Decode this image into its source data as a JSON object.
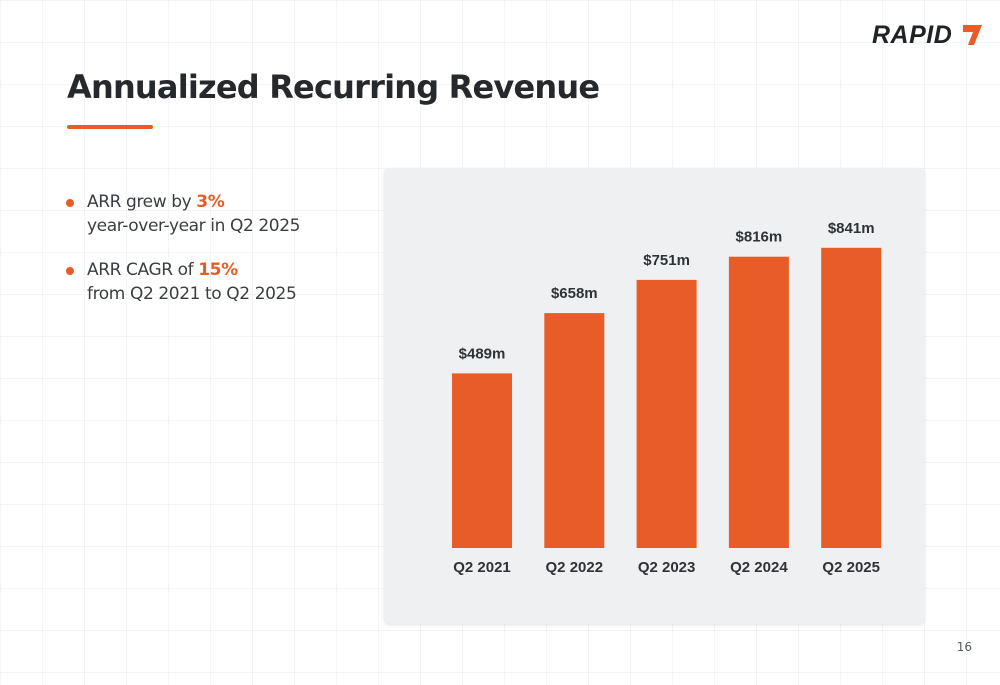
{
  "logo": {
    "text": "RAPID"
  },
  "title": "Annualized Recurring Revenue",
  "bullets": [
    {
      "before": "ARR grew by ",
      "highlight": "3%",
      "after": " year-over-year in Q2 2025"
    },
    {
      "before": "ARR CAGR of ",
      "highlight": "15%",
      "after": " from Q2 2021 to Q2 2025"
    }
  ],
  "colors": {
    "accent": "#e85d27",
    "bar": "#e85d27",
    "panel": "#eef0f1",
    "text": "#26292c"
  },
  "page_number": "16",
  "chart_data": {
    "type": "bar",
    "categories": [
      "Q2 2021",
      "Q2 2022",
      "Q2 2023",
      "Q2 2024",
      "Q2 2025"
    ],
    "values": [
      489,
      658,
      751,
      816,
      841
    ],
    "data_labels": [
      "$489m",
      "$658m",
      "$751m",
      "$816m",
      "$841m"
    ],
    "title": "",
    "xlabel": "",
    "ylabel": "",
    "ylim": [
      0,
      1000
    ],
    "grid": false,
    "legend": "none"
  }
}
